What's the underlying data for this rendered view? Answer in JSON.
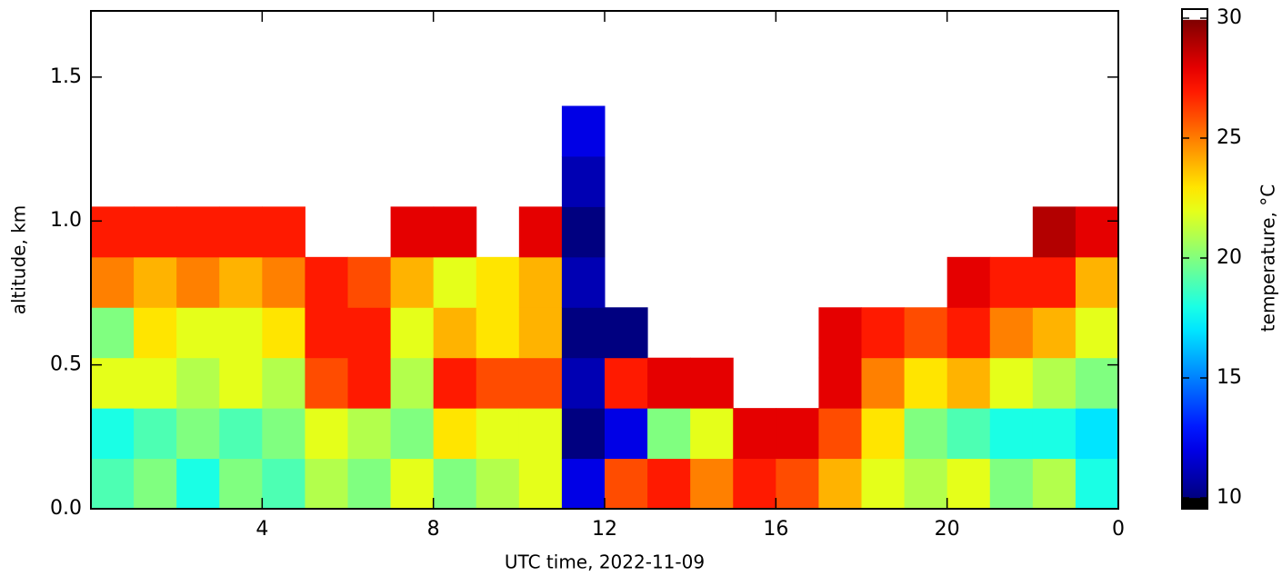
{
  "chart_data": {
    "type": "heatmap",
    "xlabel": "UTC time,  2022-11-09",
    "ylabel": "altitude, km",
    "colorbar_label": "temperature, °C",
    "colormap": "jet",
    "x": [
      0,
      1,
      2,
      3,
      4,
      5,
      6,
      7,
      8,
      9,
      10,
      11,
      12,
      13,
      14,
      15,
      16,
      17,
      18,
      19,
      20,
      21,
      22,
      23,
      24
    ],
    "y": [
      0,
      0.175,
      0.35,
      0.525,
      0.7,
      0.875,
      1.05,
      1.225,
      1.4,
      1.575,
      1.75
    ],
    "values": [
      [
        19,
        18,
        22,
        20,
        25,
        27,
        null,
        null,
        null,
        null
      ],
      [
        20,
        19,
        22,
        23,
        24,
        27,
        null,
        null,
        null,
        null
      ],
      [
        18,
        20,
        21,
        22,
        25,
        27,
        null,
        null,
        null,
        null
      ],
      [
        20,
        19,
        22,
        22,
        24,
        27,
        null,
        null,
        null,
        null
      ],
      [
        19,
        20,
        21,
        23,
        25,
        27,
        null,
        null,
        null,
        null
      ],
      [
        21,
        22,
        26,
        27,
        27,
        null,
        null,
        null,
        null,
        null
      ],
      [
        20,
        21,
        27,
        27,
        26,
        null,
        null,
        null,
        null,
        null
      ],
      [
        22,
        20,
        21,
        22,
        24,
        28,
        null,
        null,
        null,
        null
      ],
      [
        20,
        23,
        27,
        24,
        22,
        28,
        null,
        null,
        null,
        null
      ],
      [
        21,
        22,
        26,
        23,
        23,
        null,
        null,
        null,
        null,
        null
      ],
      [
        22,
        22,
        26,
        24,
        24,
        28,
        null,
        null,
        null,
        null
      ],
      [
        12,
        10,
        11,
        10,
        11,
        10,
        11,
        12,
        null,
        null
      ],
      [
        26,
        12,
        27,
        10,
        null,
        null,
        null,
        null,
        null,
        null
      ],
      [
        27,
        20,
        28,
        null,
        null,
        null,
        null,
        null,
        null,
        null
      ],
      [
        25,
        22,
        28,
        null,
        null,
        null,
        null,
        null,
        null,
        null
      ],
      [
        27,
        28,
        null,
        null,
        null,
        null,
        null,
        null,
        null,
        null
      ],
      [
        26,
        28,
        null,
        null,
        null,
        null,
        null,
        null,
        null,
        null
      ],
      [
        24,
        26,
        28,
        28,
        null,
        null,
        null,
        null,
        null,
        null
      ],
      [
        22,
        23,
        25,
        27,
        null,
        null,
        null,
        null,
        null,
        null
      ],
      [
        21,
        20,
        23,
        26,
        null,
        null,
        null,
        null,
        null,
        null
      ],
      [
        22,
        19,
        24,
        27,
        28,
        null,
        null,
        null,
        null,
        null
      ],
      [
        20,
        18,
        22,
        25,
        27,
        null,
        null,
        null,
        null,
        null
      ],
      [
        21,
        18,
        21,
        24,
        27,
        29,
        null,
        null,
        null,
        null
      ],
      [
        18,
        17,
        20,
        22,
        24,
        28,
        null,
        null,
        null,
        null
      ]
    ],
    "xlim": [
      0,
      24
    ],
    "xticks": [
      4,
      8,
      12,
      16,
      20,
      {
        "value": 24,
        "label": "0"
      }
    ],
    "ylim": [
      0,
      1.73
    ],
    "yticks": [
      {
        "value": 0,
        "label": "0.0"
      },
      0.5,
      {
        "value": 1,
        "label": "1.0"
      },
      1.5
    ],
    "clim": [
      10,
      30
    ],
    "cticks": [
      10,
      15,
      20,
      25,
      30
    ]
  }
}
